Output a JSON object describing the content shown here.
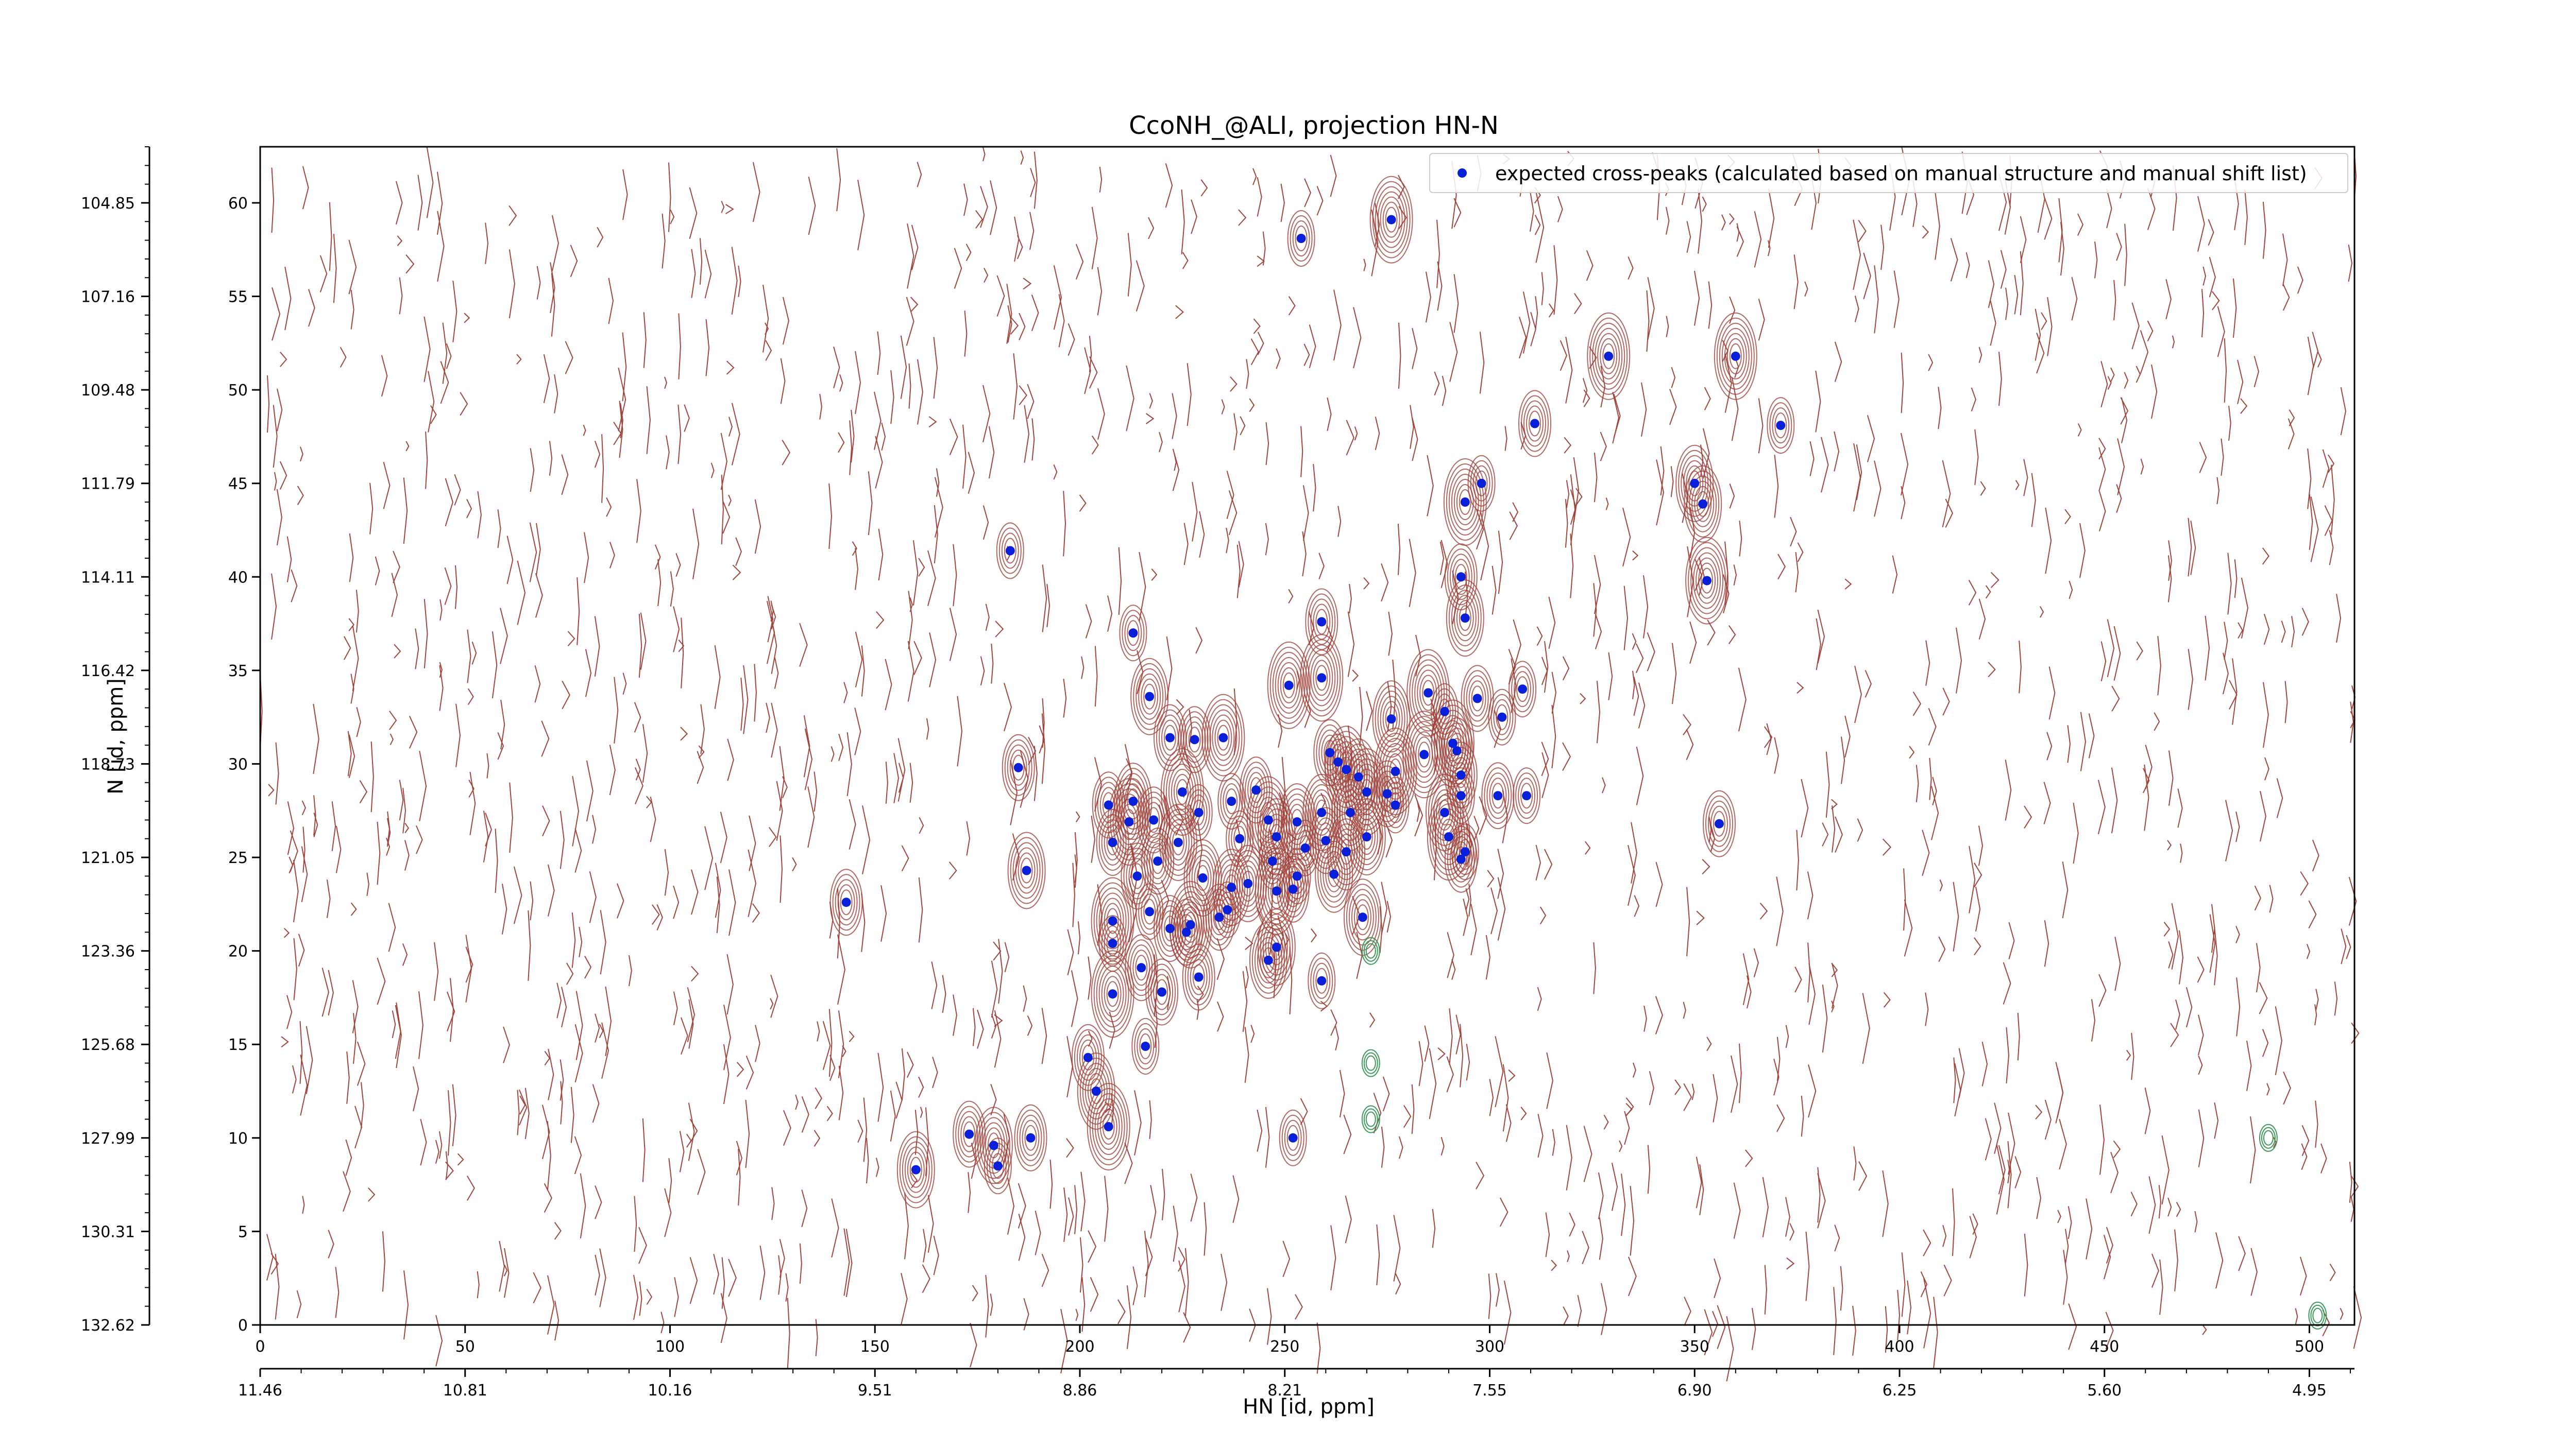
{
  "chart_data": {
    "type": "scatter",
    "title": "CcoNH_@ALI, projection HN-N",
    "xlabel": "HN [id, ppm]",
    "ylabel": "N [id, ppm]",
    "xlim": [
      0,
      511
    ],
    "ylim": [
      0,
      63
    ],
    "grid": false,
    "legend_position": "top-right",
    "x_ticks": [
      0,
      50,
      100,
      150,
      200,
      250,
      300,
      350,
      400,
      450,
      500
    ],
    "y_ticks": [
      0,
      5,
      10,
      15,
      20,
      25,
      30,
      35,
      40,
      45,
      50,
      55,
      60
    ],
    "x_ppm_ticks": [
      {
        "pos": 0,
        "label": "11.46"
      },
      {
        "pos": 50,
        "label": "10.81"
      },
      {
        "pos": 100,
        "label": "10.16"
      },
      {
        "pos": 150,
        "label": "9.51"
      },
      {
        "pos": 200,
        "label": "8.86"
      },
      {
        "pos": 250,
        "label": "8.21"
      },
      {
        "pos": 300,
        "label": "7.55"
      },
      {
        "pos": 350,
        "label": "6.90"
      },
      {
        "pos": 400,
        "label": "6.25"
      },
      {
        "pos": 450,
        "label": "5.60"
      },
      {
        "pos": 500,
        "label": "4.95"
      }
    ],
    "y_ppm_ticks": [
      {
        "pos": 0,
        "label": "132.62"
      },
      {
        "pos": 5,
        "label": "130.31"
      },
      {
        "pos": 10,
        "label": "127.99"
      },
      {
        "pos": 15,
        "label": "125.68"
      },
      {
        "pos": 20,
        "label": "123.36"
      },
      {
        "pos": 25,
        "label": "121.05"
      },
      {
        "pos": 30,
        "label": "118.73"
      },
      {
        "pos": 35,
        "label": "116.42"
      },
      {
        "pos": 40,
        "label": "114.11"
      },
      {
        "pos": 45,
        "label": "111.79"
      },
      {
        "pos": 50,
        "label": "109.48"
      },
      {
        "pos": 55,
        "label": "107.16"
      },
      {
        "pos": 60,
        "label": "104.85"
      }
    ],
    "colors": {
      "peaks": "#0a1fd8",
      "contour_pos": "#a0443c",
      "contour_neg": "#3a9a5a"
    },
    "series": [
      {
        "name": "expected cross-peaks (calculated based on manual structure and manual shift list)",
        "points": [
          [
            254,
            58.1
          ],
          [
            276,
            59.1
          ],
          [
            329,
            51.8
          ],
          [
            360,
            51.8
          ],
          [
            311,
            48.2
          ],
          [
            371,
            48.1
          ],
          [
            298,
            45.0
          ],
          [
            350,
            45.0
          ],
          [
            294,
            44.0
          ],
          [
            352,
            43.9
          ],
          [
            183,
            41.4
          ],
          [
            293,
            40.0
          ],
          [
            353,
            39.8
          ],
          [
            259,
            37.6
          ],
          [
            294,
            37.8
          ],
          [
            213,
            37.0
          ],
          [
            251,
            34.2
          ],
          [
            259,
            34.6
          ],
          [
            217,
            33.6
          ],
          [
            285,
            33.8
          ],
          [
            308,
            34.0
          ],
          [
            276,
            32.4
          ],
          [
            289,
            32.8
          ],
          [
            297,
            33.5
          ],
          [
            303,
            32.5
          ],
          [
            222,
            31.4
          ],
          [
            228,
            31.3
          ],
          [
            235,
            31.4
          ],
          [
            291,
            31.1
          ],
          [
            261,
            30.6
          ],
          [
            263,
            30.1
          ],
          [
            284,
            30.5
          ],
          [
            292,
            30.7
          ],
          [
            185,
            29.8
          ],
          [
            265,
            29.7
          ],
          [
            268,
            29.3
          ],
          [
            277,
            29.6
          ],
          [
            293,
            29.4
          ],
          [
            225,
            28.5
          ],
          [
            243,
            28.6
          ],
          [
            270,
            28.5
          ],
          [
            275,
            28.4
          ],
          [
            293,
            28.3
          ],
          [
            302,
            28.3
          ],
          [
            309,
            28.3
          ],
          [
            207,
            27.8
          ],
          [
            213,
            28.0
          ],
          [
            237,
            28.0
          ],
          [
            277,
            27.8
          ],
          [
            229,
            27.4
          ],
          [
            259,
            27.4
          ],
          [
            266,
            27.4
          ],
          [
            289,
            27.4
          ],
          [
            212,
            26.9
          ],
          [
            218,
            27.0
          ],
          [
            246,
            27.0
          ],
          [
            253,
            26.9
          ],
          [
            208,
            25.8
          ],
          [
            224,
            25.8
          ],
          [
            239,
            26.0
          ],
          [
            248,
            26.1
          ],
          [
            255,
            25.5
          ],
          [
            260,
            25.9
          ],
          [
            270,
            26.1
          ],
          [
            290,
            26.1
          ],
          [
            293,
            24.9
          ],
          [
            356,
            26.8
          ],
          [
            219,
            24.8
          ],
          [
            247,
            24.8
          ],
          [
            265,
            25.3
          ],
          [
            187,
            24.3
          ],
          [
            214,
            24.0
          ],
          [
            230,
            23.9
          ],
          [
            262,
            24.1
          ],
          [
            237,
            23.4
          ],
          [
            241,
            23.6
          ],
          [
            248,
            23.2
          ],
          [
            253,
            24.0
          ],
          [
            294,
            25.3
          ],
          [
            143,
            22.6
          ],
          [
            217,
            22.1
          ],
          [
            222,
            21.2
          ],
          [
            226,
            21.0
          ],
          [
            234,
            21.8
          ],
          [
            236,
            22.2
          ],
          [
            252,
            23.3
          ],
          [
            269,
            21.8
          ],
          [
            208,
            21.6
          ],
          [
            227,
            21.4
          ],
          [
            248,
            20.2
          ],
          [
            208,
            20.4
          ],
          [
            246,
            19.5
          ],
          [
            215,
            19.1
          ],
          [
            229,
            18.6
          ],
          [
            259,
            18.4
          ],
          [
            220,
            17.8
          ],
          [
            208,
            17.7
          ],
          [
            202,
            14.3
          ],
          [
            216,
            14.9
          ],
          [
            204,
            12.5
          ],
          [
            207,
            10.6
          ],
          [
            173,
            10.2
          ],
          [
            179,
            9.6
          ],
          [
            188,
            10.0
          ],
          [
            252,
            10.0
          ],
          [
            180,
            8.5
          ],
          [
            160,
            8.3
          ]
        ]
      }
    ]
  }
}
